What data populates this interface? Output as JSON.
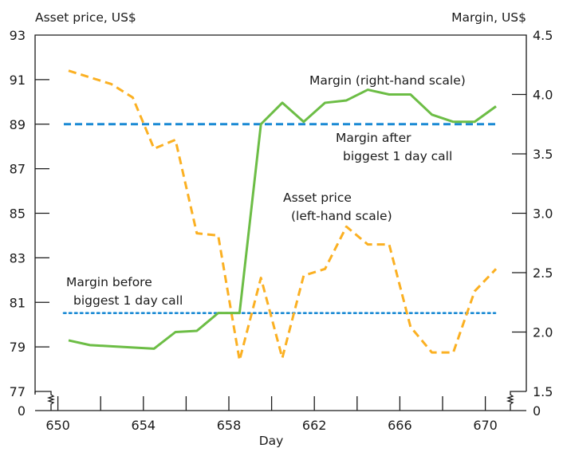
{
  "chart_data": {
    "type": "line",
    "xlabel": "Day",
    "ylabel_left": "Asset price, US$",
    "ylabel_right": "Margin, US$",
    "x_ticks": [
      650,
      654,
      658,
      662,
      666,
      670
    ],
    "xlim": [
      649.5,
      672
    ],
    "ylim_left": [
      77,
      93
    ],
    "ylim_right": [
      1.5,
      4.5
    ],
    "left_ticks": [
      "93",
      "91",
      "89",
      "87",
      "85",
      "83",
      "81",
      "79",
      "77",
      "0"
    ],
    "right_ticks": [
      "4.5",
      "4.0",
      "3.5",
      "3.0",
      "2.5",
      "2.0",
      "1.5",
      "0"
    ],
    "axis_break": true,
    "grid": false,
    "x": [
      650.5,
      651.5,
      652.5,
      653.5,
      654.5,
      655.5,
      656.5,
      657.5,
      658.5,
      659.5,
      660.5,
      661.5,
      662.5,
      663.5,
      664.5,
      665.5,
      666.5,
      667.5,
      668.5,
      669.5,
      670.5
    ],
    "series": [
      {
        "name": "Asset price",
        "axis": "left",
        "style": "dashed",
        "color": "#fbb022",
        "values": [
          91.4,
          91.1,
          90.8,
          90.2,
          87.9,
          88.3,
          84.1,
          84.0,
          78.4,
          82.1,
          78.5,
          82.2,
          82.5,
          84.4,
          83.6,
          83.6,
          79.9,
          78.75,
          78.75,
          81.5,
          82.5
        ]
      },
      {
        "name": "Margin",
        "axis": "right",
        "style": "solid",
        "color": "#6cbd45",
        "values": [
          1.93,
          1.89,
          1.88,
          1.87,
          1.86,
          2.0,
          2.01,
          2.16,
          2.16,
          3.75,
          3.93,
          3.77,
          3.93,
          3.95,
          4.04,
          4.0,
          4.0,
          3.83,
          3.77,
          3.77,
          3.9
        ]
      }
    ],
    "reference_lines": [
      {
        "label": "Margin after biggest 1 day call",
        "axis": "right",
        "value": 3.75,
        "style": "dashed",
        "color": "#1a8ad4"
      },
      {
        "label": "Margin before biggest 1 day call",
        "axis": "right",
        "value": 2.16,
        "style": "dotted",
        "color": "#1a8ad4"
      }
    ],
    "annotations": {
      "margin_line": "Margin (right-hand scale)",
      "after_1": "Margin after",
      "after_2": "biggest 1 day call",
      "price_1": "Asset price",
      "price_2": "(left-hand scale)",
      "before_1": "Margin before",
      "before_2": "biggest 1 day call"
    }
  }
}
